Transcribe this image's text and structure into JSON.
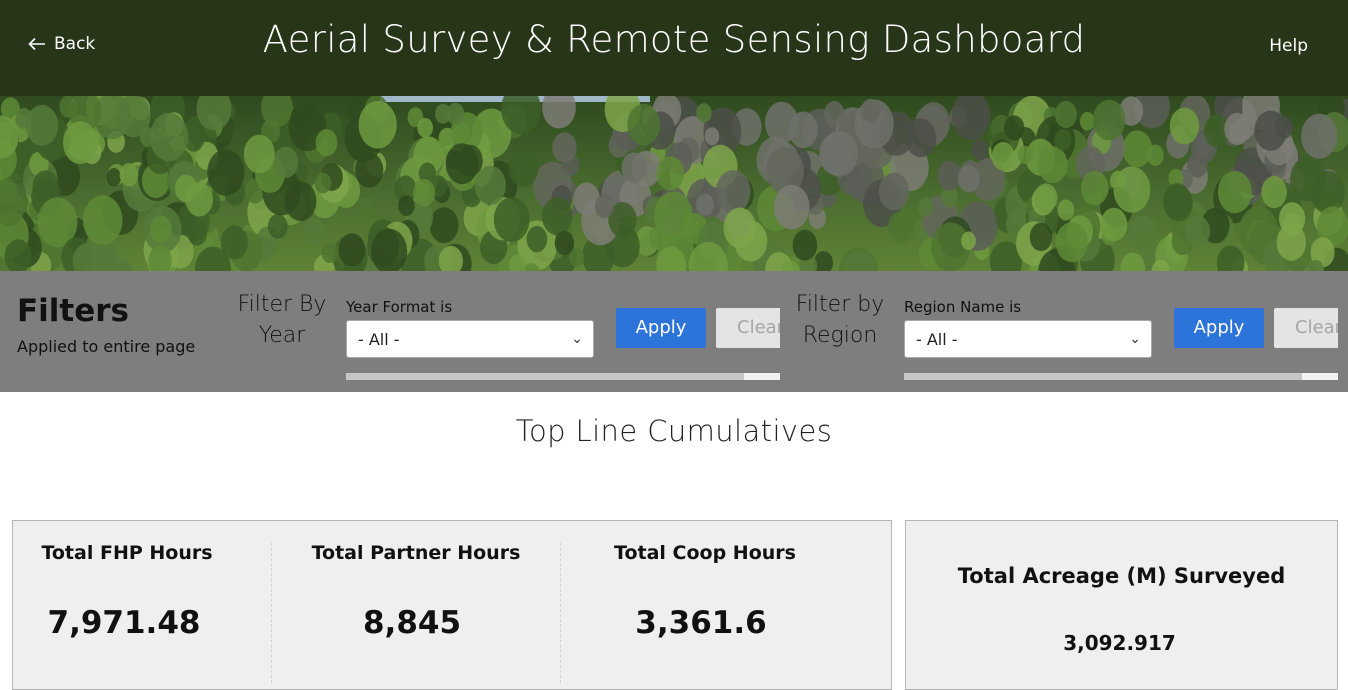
{
  "header": {
    "back_label": "Back",
    "title": "Aerial Survey & Remote Sensing Dashboard",
    "help_label": "Help",
    "background": "#273618"
  },
  "hero": {
    "icon": "forest-image"
  },
  "filters": {
    "title": "Filters",
    "subtitle": "Applied to entire page",
    "year": {
      "label": "Filter By Year",
      "field_label": "Year Format is",
      "selected": "- All -",
      "apply_label": "Apply",
      "clear_label": "Clear"
    },
    "region": {
      "label": "Filter by Region",
      "field_label": "Region Name is",
      "selected": "- All -",
      "apply_label": "Apply",
      "clear_label": "Clear"
    },
    "accent": "#2d74da"
  },
  "section": {
    "title": "Top Line Cumulatives"
  },
  "stats": {
    "fhp_label": "Total FHP Hours",
    "fhp_value": "7,971.48",
    "partner_label": "Total Partner Hours",
    "partner_value": "8,845",
    "coop_label": "Total Coop Hours",
    "coop_value": "3,361.6",
    "acreage_label": "Total Acreage (M) Surveyed",
    "acreage_value": "3,092.917"
  }
}
